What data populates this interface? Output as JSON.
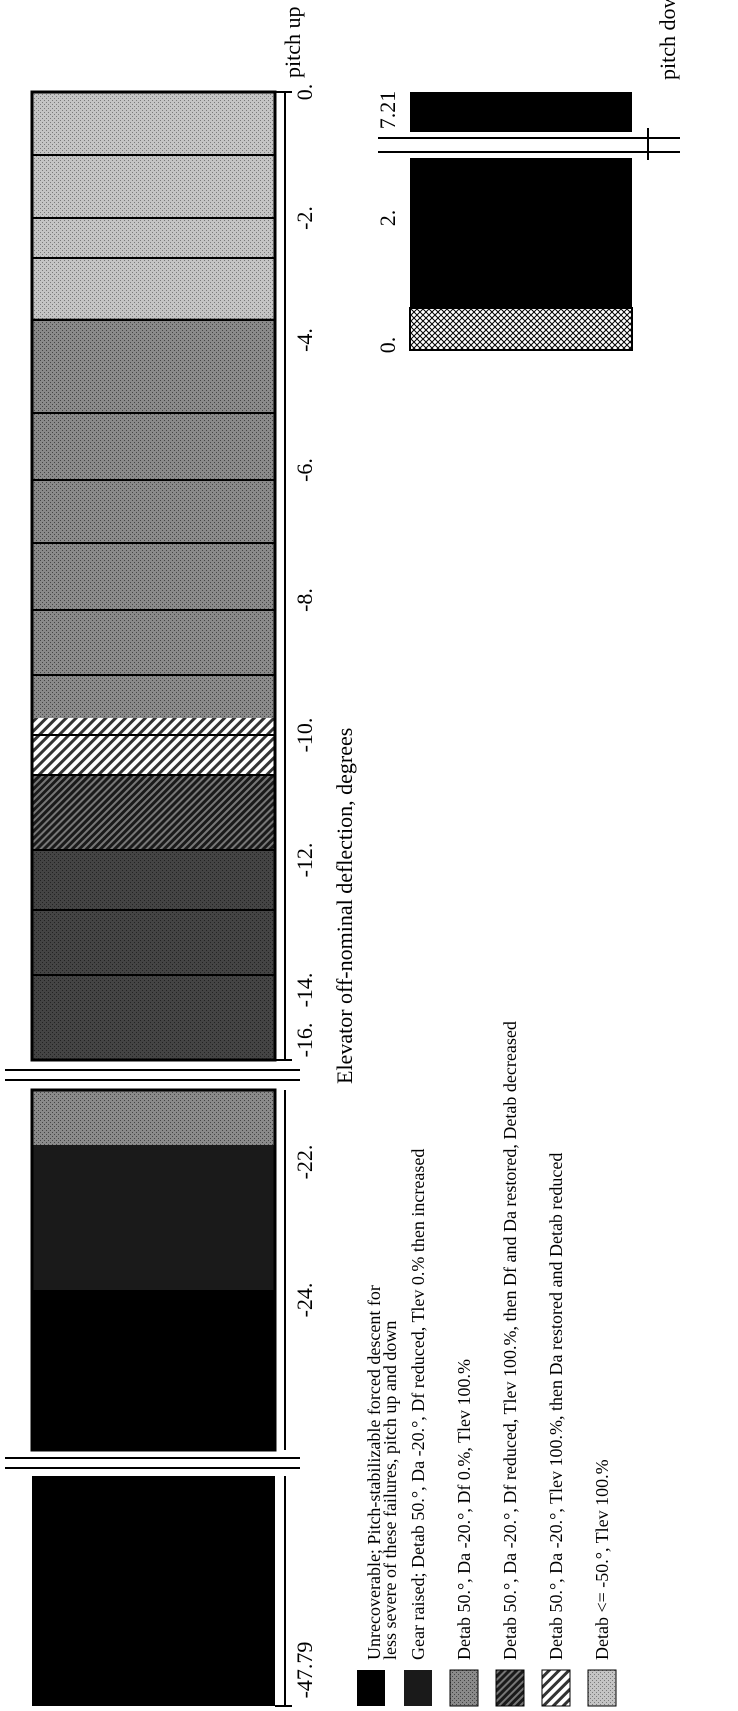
{
  "chart_data": [
    {
      "type": "bar",
      "panel": "pitch up",
      "orientation": "horizontal-stacked",
      "title": "pitch up",
      "xlabel": "Elevator off-nominal deflection, degrees",
      "axis_breaks": [
        [
          -21,
          -16
        ],
        [
          -47.79,
          -25.6
        ]
      ],
      "tick_labels": [
        "0.",
        "-2.",
        "-4.",
        "-6.",
        "-8.",
        "-10.",
        "-12.",
        "-14.",
        "-16.",
        "-22.",
        "-24.",
        "-47.79"
      ],
      "segments": [
        {
          "from": 0,
          "to": -2,
          "category": "Detab <= -50.°, Tlev 100.%"
        },
        {
          "from": -2,
          "to": -4,
          "category": "Detab <= -50.°, Tlev 100.%"
        },
        {
          "from": -4,
          "to": -5,
          "category": "Detab <= -50.°, Tlev 100.%"
        },
        {
          "from": -5,
          "to": -6,
          "category": "Detab 50.°, Da -20.°, Df 0.%, Tlev 100.%"
        },
        {
          "from": -6,
          "to": -8,
          "category": "Detab 50.°, Da -20.°, Df 0.%, Tlev 100.%"
        },
        {
          "from": -8,
          "to": -9.5,
          "category": "Detab 50.°, Da -20.°, Df 0.%, Tlev 100.%"
        },
        {
          "from": -9.5,
          "to": -11,
          "category": "Detab 50.°, Da -20.°, Tlev 100.%, then Da restored and Detab reduced"
        },
        {
          "from": -11,
          "to": -12,
          "category": "Detab 50.°, Da -20.°, Df reduced, Tlev 100.%, then Df and Da restored, Detab decreased"
        },
        {
          "from": -12,
          "to": -16,
          "category": "Detab 50.°, Da -20.°, Df 0.%, Tlev 100.%"
        },
        {
          "from": -16,
          "to": -21,
          "category": "Detab 50.°, Da -20.°, Df 0.%, Tlev 100.%"
        },
        {
          "from": -21,
          "to": -23.6,
          "category": "Gear raised; Detab 50.°, Da -20.°, Df reduced, Tlev 0.% then increased"
        },
        {
          "from": -23.6,
          "to": -25.6,
          "category": "Unrecoverable; Pitch-stabilizable forced descent for less severe of these failures, pitch up and down"
        },
        {
          "from": -25.6,
          "to": -47.79,
          "category": "Unrecoverable; Pitch-stabilizable forced descent for less severe of these failures, pitch up and down"
        }
      ]
    },
    {
      "type": "bar",
      "panel": "pitch down",
      "orientation": "horizontal-stacked",
      "title": "pitch down",
      "axis_breaks": [
        [
          3.5,
          7.21
        ]
      ],
      "tick_labels": [
        "0.",
        "2.",
        "7.21"
      ],
      "segments": [
        {
          "from": 0,
          "to": 0.5,
          "category": "Detab 50.°, Da -20.°, Df reduced, Tlev 100.%, then Df and Da restored, Detab decreased"
        },
        {
          "from": 0.5,
          "to": 3.5,
          "category": "Unrecoverable; Pitch-stabilizable forced descent for less severe of these failures, pitch up and down"
        },
        {
          "from": 3.5,
          "to": 7.21,
          "category": "Unrecoverable; Pitch-stabilizable forced descent for less severe of these failures, pitch up and down"
        }
      ]
    }
  ],
  "legend": [
    {
      "label1": "Unrecoverable; Pitch-stabilizable forced descent for",
      "label2": "less severe of these failures, pitch up and down",
      "color": "#000000",
      "pattern": "solid"
    },
    {
      "label1": "Gear raised; Detab 50.°, Da -20.°, Df reduced, Tlev 0.% then increased",
      "label2": "",
      "color": "#1a1a1a",
      "pattern": "solid"
    },
    {
      "label1": "Detab 50.°, Da -20.°, Df 0.%, Tlev 100.%",
      "label2": "",
      "color": "#6e6e6e",
      "pattern": "dots"
    },
    {
      "label1": "Detab 50.°, Da -20.°, Df reduced, Tlev 100.%, then Df and Da restored, Detab decreased",
      "label2": "",
      "color": "#555555",
      "pattern": "hatch-dense"
    },
    {
      "label1": "Detab 50.°, Da -20.°, Tlev 100.%, then Da restored and Detab reduced",
      "label2": "",
      "color": "#777777",
      "pattern": "hatch-light"
    },
    {
      "label1": "Detab <= -50.°, Tlev 100.%",
      "label2": "",
      "color": "#bdbdbd",
      "pattern": "dots-light"
    }
  ]
}
